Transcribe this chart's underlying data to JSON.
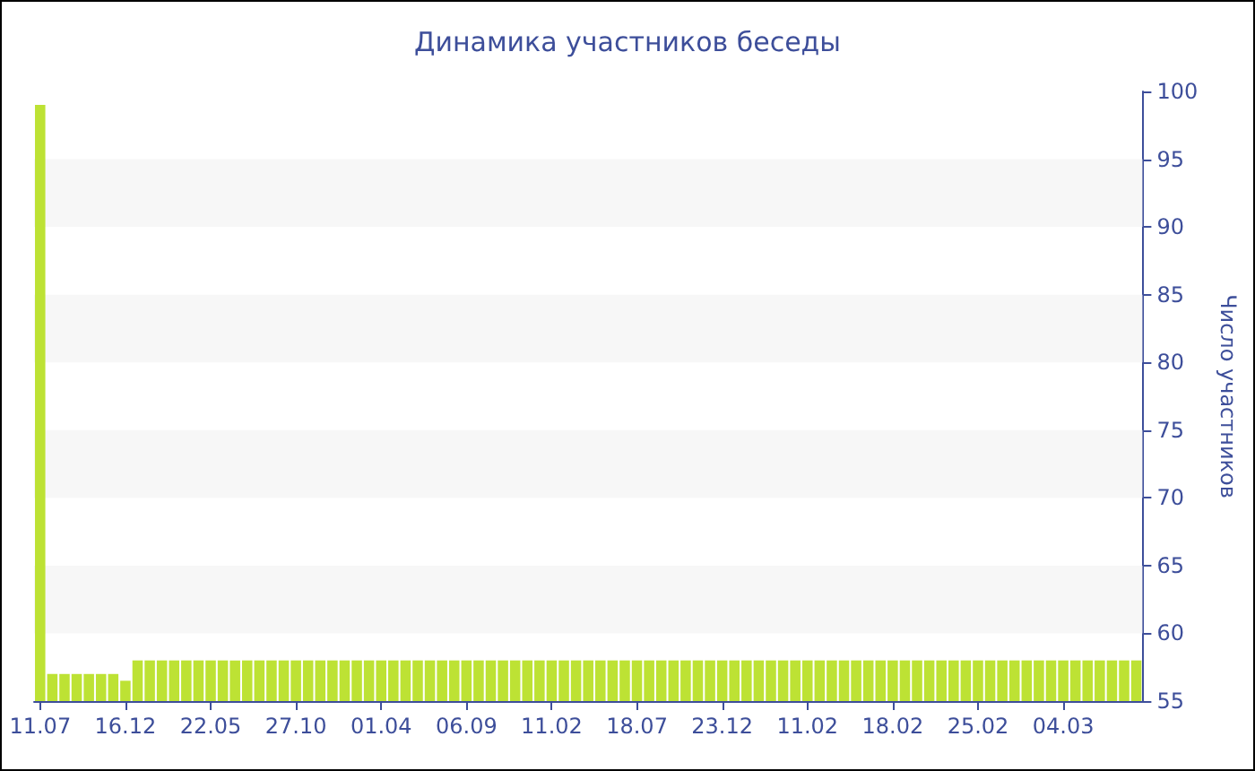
{
  "chart_data": {
    "type": "bar",
    "title": "Динамика участников беседы",
    "ylabel": "Число участников",
    "categories": [
      "11.07",
      null,
      null,
      null,
      null,
      null,
      null,
      "16.12",
      null,
      null,
      null,
      null,
      null,
      null,
      "22.05",
      null,
      null,
      null,
      null,
      null,
      null,
      "27.10",
      null,
      null,
      null,
      null,
      null,
      null,
      "01.04",
      null,
      null,
      null,
      null,
      null,
      null,
      "06.09",
      null,
      null,
      null,
      null,
      null,
      null,
      "11.02",
      null,
      null,
      null,
      null,
      null,
      null,
      "18.07",
      null,
      null,
      null,
      null,
      null,
      null,
      "23.12",
      null,
      null,
      null,
      null,
      null,
      null,
      "11.02",
      null,
      null,
      null,
      null,
      null,
      null,
      "18.02",
      null,
      null,
      null,
      null,
      null,
      null,
      "25.02",
      null,
      null,
      null,
      null,
      null,
      null,
      "04.03",
      null,
      null,
      null,
      null,
      null,
      null
    ],
    "values": [
      99,
      57,
      57,
      57,
      57,
      57,
      57,
      56.5,
      58,
      58,
      58,
      58,
      58,
      58,
      58,
      58,
      58,
      58,
      58,
      58,
      58,
      58,
      58,
      58,
      58,
      58,
      58,
      58,
      58,
      58,
      58,
      58,
      58,
      58,
      58,
      58,
      58,
      58,
      58,
      58,
      58,
      58,
      58,
      58,
      58,
      58,
      58,
      58,
      58,
      58,
      58,
      58,
      58,
      58,
      58,
      58,
      58,
      58,
      58,
      58,
      58,
      58,
      58,
      58,
      58,
      58,
      58,
      58,
      58,
      58,
      58,
      58,
      58,
      58,
      58,
      58,
      58,
      58,
      58,
      58,
      58,
      58,
      58,
      58,
      58,
      58,
      58,
      58,
      58,
      58,
      58
    ],
    "color": "#bde234",
    "ylim": [
      55,
      100
    ],
    "yticks": [
      55,
      60,
      65,
      70,
      75,
      80,
      85,
      90,
      95,
      100
    ],
    "bands": [
      {
        "axis": "y",
        "from": 60,
        "to": 65,
        "color": "#f7f7f7"
      },
      {
        "axis": "y",
        "from": 70,
        "to": 75,
        "color": "#f7f7f7"
      },
      {
        "axis": "y",
        "from": 80,
        "to": 85,
        "color": "#f7f7f7"
      },
      {
        "axis": "y",
        "from": 90,
        "to": 95,
        "color": "#f7f7f7"
      }
    ]
  }
}
